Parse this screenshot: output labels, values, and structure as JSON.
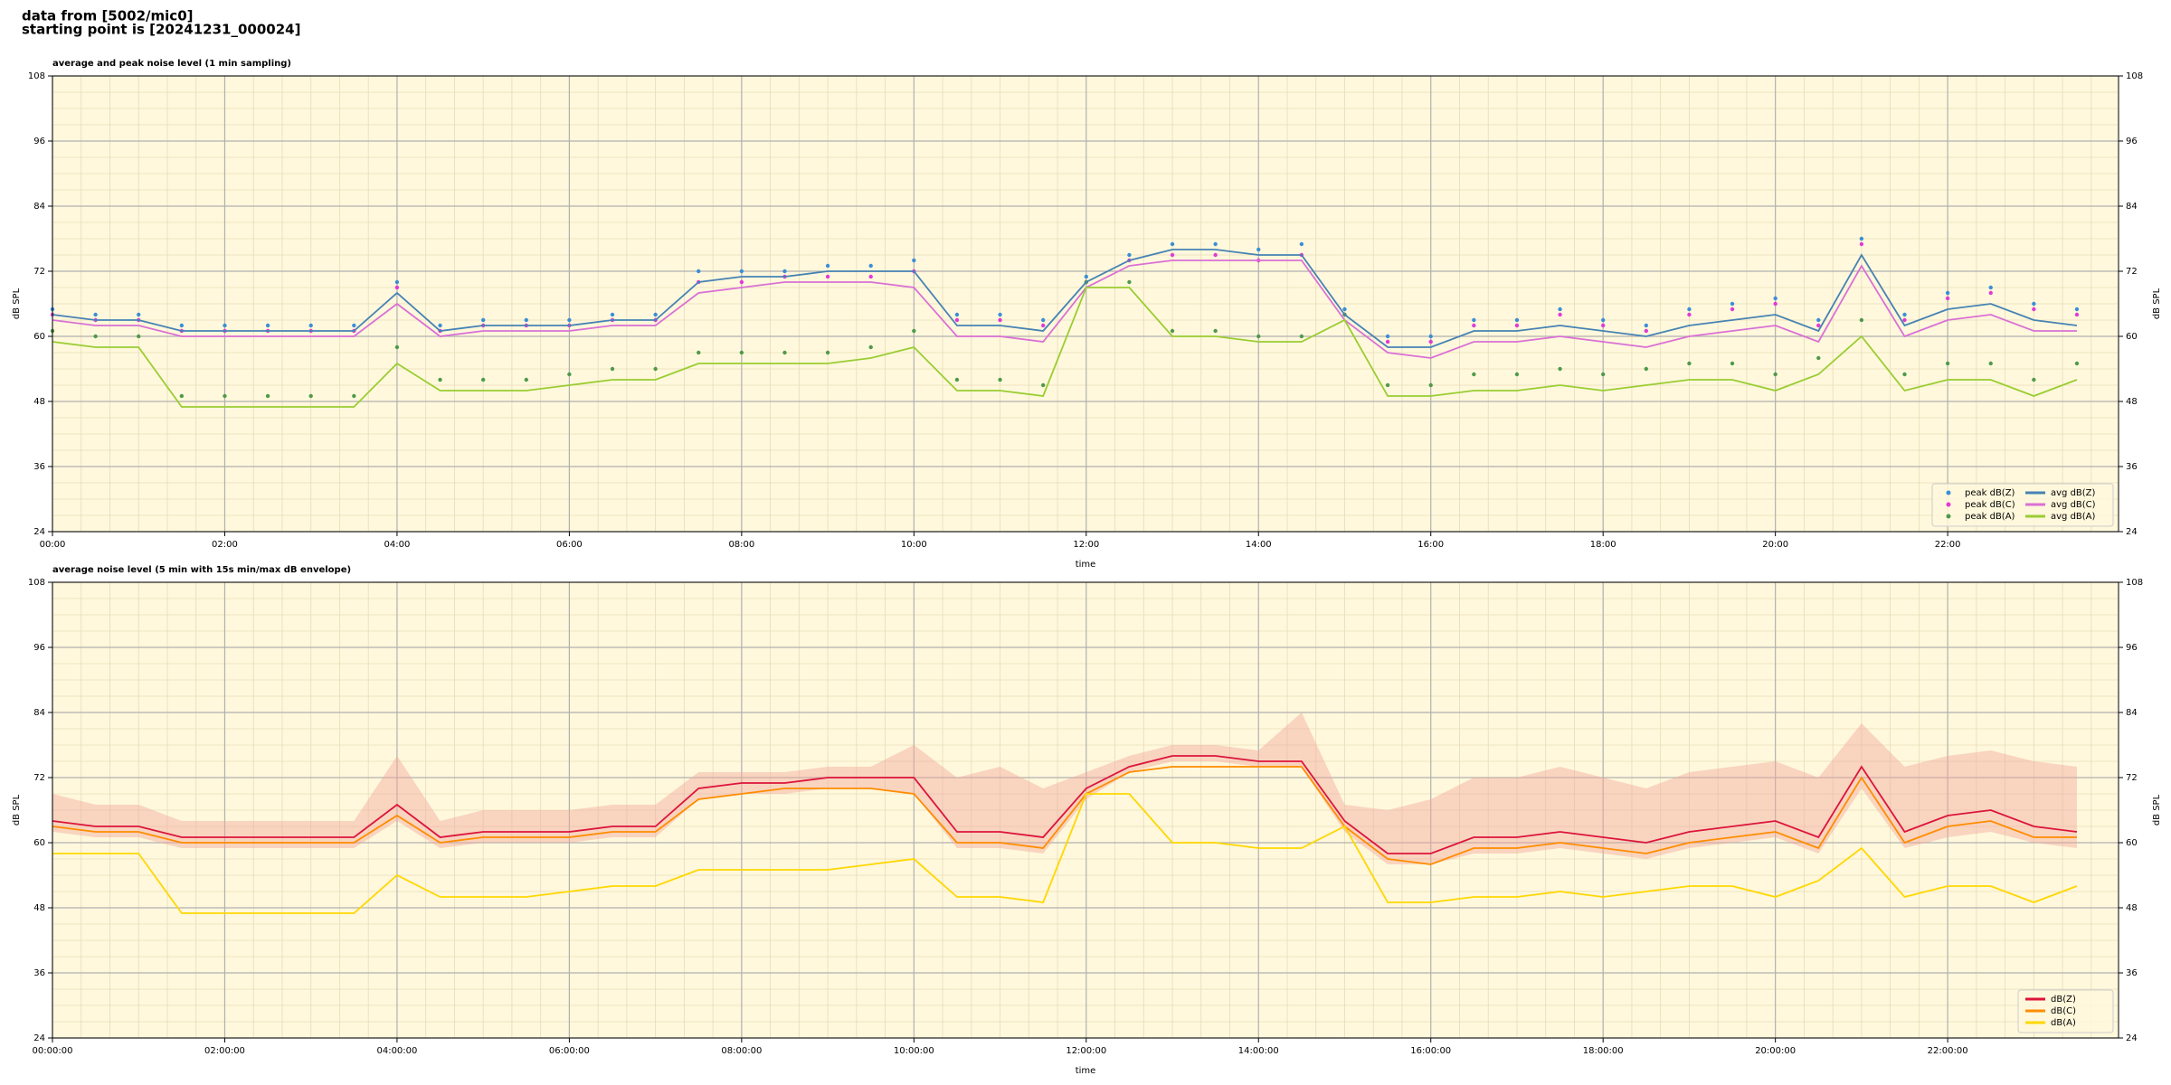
{
  "header": {
    "lines": [
      "data from [5002/mic0]",
      "starting point is [20241231_000024]"
    ]
  },
  "chart_data": [
    {
      "type": "line",
      "title": "average and peak noise level (1 min sampling)",
      "xlabel": "time",
      "ylabel": "dB SPL",
      "x": [
        0,
        30,
        60,
        90,
        120,
        150,
        180,
        210,
        240,
        270,
        300,
        330,
        360,
        390,
        420,
        450,
        480,
        510,
        540,
        570,
        600,
        630,
        660,
        690,
        720,
        750,
        780,
        810,
        840,
        870,
        900,
        930,
        960,
        990,
        1020,
        1050,
        1080,
        1110,
        1140,
        1170,
        1200,
        1230,
        1260,
        1290,
        1320,
        1350,
        1380,
        1410
      ],
      "series": [
        {
          "name": "peak dB(Z)",
          "type": "scatter",
          "color": "#3a8fd6",
          "values": [
            65,
            64,
            64,
            62,
            62,
            62,
            62,
            62,
            70,
            62,
            63,
            63,
            63,
            64,
            64,
            72,
            72,
            72,
            73,
            73,
            74,
            64,
            64,
            63,
            71,
            75,
            77,
            77,
            76,
            77,
            65,
            60,
            60,
            63,
            63,
            65,
            63,
            62,
            65,
            66,
            67,
            63,
            78,
            64,
            68,
            69,
            66,
            65
          ]
        },
        {
          "name": "peak dB(C)",
          "type": "scatter",
          "color": "#e23ad6",
          "values": [
            64,
            63,
            63,
            61,
            61,
            61,
            61,
            61,
            69,
            61,
            62,
            62,
            62,
            63,
            63,
            70,
            70,
            71,
            71,
            71,
            72,
            63,
            63,
            62,
            70,
            74,
            75,
            75,
            74,
            75,
            64,
            59,
            59,
            62,
            62,
            64,
            62,
            61,
            64,
            65,
            66,
            62,
            77,
            63,
            67,
            68,
            65,
            64
          ]
        },
        {
          "name": "peak dB(A)",
          "type": "scatter",
          "color": "#4f9a4a",
          "values": [
            61,
            60,
            60,
            49,
            49,
            49,
            49,
            49,
            58,
            52,
            52,
            52,
            53,
            54,
            54,
            57,
            57,
            57,
            57,
            58,
            61,
            52,
            52,
            51,
            70,
            70,
            61,
            61,
            60,
            60,
            64,
            51,
            51,
            53,
            53,
            54,
            53,
            54,
            55,
            55,
            53,
            56,
            63,
            53,
            55,
            55,
            52,
            55
          ]
        },
        {
          "name": "avg dB(Z)",
          "type": "line",
          "color": "#4682b4",
          "values": [
            64,
            63,
            63,
            61,
            61,
            61,
            61,
            61,
            68,
            61,
            62,
            62,
            62,
            63,
            63,
            70,
            71,
            71,
            72,
            72,
            72,
            62,
            62,
            61,
            70,
            74,
            76,
            76,
            75,
            75,
            64,
            58,
            58,
            61,
            61,
            62,
            61,
            60,
            62,
            63,
            64,
            61,
            75,
            62,
            65,
            66,
            63,
            62
          ]
        },
        {
          "name": "avg dB(C)",
          "type": "line",
          "color": "#da70d6",
          "values": [
            63,
            62,
            62,
            60,
            60,
            60,
            60,
            60,
            66,
            60,
            61,
            61,
            61,
            62,
            62,
            68,
            69,
            70,
            70,
            70,
            69,
            60,
            60,
            59,
            69,
            73,
            74,
            74,
            74,
            74,
            63,
            57,
            56,
            59,
            59,
            60,
            59,
            58,
            60,
            61,
            62,
            59,
            73,
            60,
            63,
            64,
            61,
            61
          ]
        },
        {
          "name": "avg dB(A)",
          "type": "line",
          "color": "#9acd32",
          "values": [
            59,
            58,
            58,
            47,
            47,
            47,
            47,
            47,
            55,
            50,
            50,
            50,
            51,
            52,
            52,
            55,
            55,
            55,
            55,
            56,
            58,
            50,
            50,
            49,
            69,
            69,
            60,
            60,
            59,
            59,
            63,
            49,
            49,
            50,
            50,
            51,
            50,
            51,
            52,
            52,
            50,
            53,
            60,
            50,
            52,
            52,
            49,
            52
          ]
        }
      ],
      "xlim": [
        0,
        1439
      ],
      "ylim": [
        24,
        108
      ],
      "xticks": [
        {
          "value": 0,
          "label": "00:00"
        },
        {
          "value": 120,
          "label": "02:00"
        },
        {
          "value": 240,
          "label": "04:00"
        },
        {
          "value": 360,
          "label": "06:00"
        },
        {
          "value": 480,
          "label": "08:00"
        },
        {
          "value": 600,
          "label": "10:00"
        },
        {
          "value": 720,
          "label": "12:00"
        },
        {
          "value": 840,
          "label": "14:00"
        },
        {
          "value": 960,
          "label": "16:00"
        },
        {
          "value": 1080,
          "label": "18:00"
        },
        {
          "value": 1200,
          "label": "20:00"
        },
        {
          "value": 1320,
          "label": "22:00"
        }
      ],
      "yticks": [
        24,
        36,
        48,
        60,
        72,
        84,
        96,
        108
      ],
      "grid": true,
      "legend": "lower right",
      "background": "#fff8dc"
    },
    {
      "type": "line",
      "title": "average noise level (5 min with 15s min/max dB envelope)",
      "xlabel": "time",
      "ylabel": "dB SPL",
      "x": [
        0,
        30,
        60,
        90,
        120,
        150,
        180,
        210,
        240,
        270,
        300,
        330,
        360,
        390,
        420,
        450,
        480,
        510,
        540,
        570,
        600,
        630,
        660,
        690,
        720,
        750,
        780,
        810,
        840,
        870,
        900,
        930,
        960,
        990,
        1020,
        1050,
        1080,
        1110,
        1140,
        1170,
        1200,
        1230,
        1260,
        1290,
        1320,
        1350,
        1380,
        1410
      ],
      "envelope": {
        "color": "#f2a89c",
        "upper": [
          69,
          67,
          67,
          64,
          64,
          64,
          64,
          64,
          76,
          64,
          66,
          66,
          66,
          67,
          67,
          73,
          73,
          73,
          74,
          74,
          78,
          72,
          74,
          70,
          73,
          76,
          78,
          78,
          77,
          84,
          67,
          66,
          68,
          72,
          72,
          74,
          72,
          70,
          73,
          74,
          75,
          72,
          82,
          74,
          76,
          77,
          75,
          74
        ],
        "lower": [
          62,
          61,
          61,
          59,
          59,
          59,
          59,
          59,
          64,
          59,
          60,
          60,
          60,
          61,
          61,
          68,
          69,
          69,
          70,
          70,
          69,
          59,
          59,
          58,
          68,
          73,
          75,
          75,
          74,
          74,
          62,
          56,
          56,
          58,
          58,
          59,
          58,
          57,
          59,
          60,
          61,
          58,
          70,
          59,
          61,
          62,
          60,
          59
        ]
      },
      "series": [
        {
          "name": "dB(Z)",
          "type": "line",
          "color": "#dc143c",
          "values": [
            64,
            63,
            63,
            61,
            61,
            61,
            61,
            61,
            67,
            61,
            62,
            62,
            62,
            63,
            63,
            70,
            71,
            71,
            72,
            72,
            72,
            62,
            62,
            61,
            70,
            74,
            76,
            76,
            75,
            75,
            64,
            58,
            58,
            61,
            61,
            62,
            61,
            60,
            62,
            63,
            64,
            61,
            74,
            62,
            65,
            66,
            63,
            62
          ]
        },
        {
          "name": "dB(C)",
          "type": "line",
          "color": "#ff8c00",
          "values": [
            63,
            62,
            62,
            60,
            60,
            60,
            60,
            60,
            65,
            60,
            61,
            61,
            61,
            62,
            62,
            68,
            69,
            70,
            70,
            70,
            69,
            60,
            60,
            59,
            69,
            73,
            74,
            74,
            74,
            74,
            63,
            57,
            56,
            59,
            59,
            60,
            59,
            58,
            60,
            61,
            62,
            59,
            72,
            60,
            63,
            64,
            61,
            61
          ]
        },
        {
          "name": "dB(A)",
          "type": "line",
          "color": "#ffd700",
          "values": [
            58,
            58,
            58,
            47,
            47,
            47,
            47,
            47,
            54,
            50,
            50,
            50,
            51,
            52,
            52,
            55,
            55,
            55,
            55,
            56,
            57,
            50,
            50,
            49,
            69,
            69,
            60,
            60,
            59,
            59,
            63,
            49,
            49,
            50,
            50,
            51,
            50,
            51,
            52,
            52,
            50,
            53,
            59,
            50,
            52,
            52,
            49,
            52
          ]
        }
      ],
      "xlim": [
        0,
        1439
      ],
      "ylim": [
        24,
        108
      ],
      "xticks": [
        {
          "value": 0,
          "label": "00:00:00"
        },
        {
          "value": 120,
          "label": "02:00:00"
        },
        {
          "value": 240,
          "label": "04:00:00"
        },
        {
          "value": 360,
          "label": "06:00:00"
        },
        {
          "value": 480,
          "label": "08:00:00"
        },
        {
          "value": 600,
          "label": "10:00:00"
        },
        {
          "value": 720,
          "label": "12:00:00"
        },
        {
          "value": 840,
          "label": "14:00:00"
        },
        {
          "value": 960,
          "label": "16:00:00"
        },
        {
          "value": 1080,
          "label": "18:00:00"
        },
        {
          "value": 1200,
          "label": "20:00:00"
        },
        {
          "value": 1320,
          "label": "22:00:00"
        }
      ],
      "yticks": [
        24,
        36,
        48,
        60,
        72,
        84,
        96,
        108
      ],
      "grid": true,
      "legend": "lower right",
      "background": "#fff8dc"
    }
  ]
}
